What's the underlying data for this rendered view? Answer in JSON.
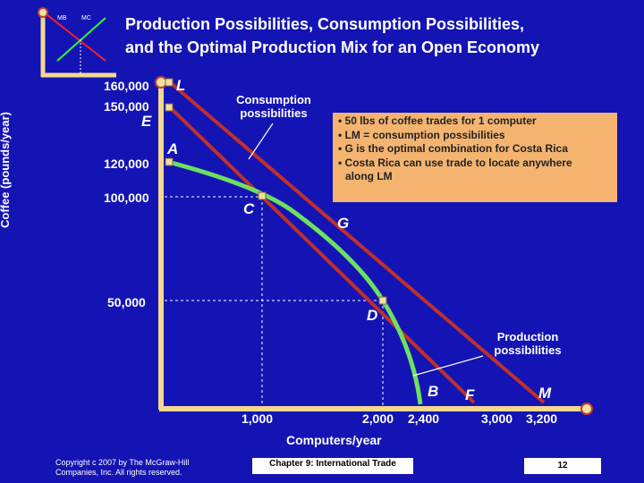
{
  "logo": {
    "mb": "MB",
    "mc": "MC"
  },
  "title": {
    "line1": "Production Possibilities, Consumption Possibilities,",
    "line2": "and the Optimal Production Mix for an Open Economy"
  },
  "axes": {
    "ylabel": "Coffee (pounds/year)",
    "xlabel": "Computers/year",
    "yticks": [
      "160,000",
      "150,000",
      "120,000",
      "100,000",
      "50,000"
    ],
    "xticks": [
      "1,000",
      "2,000",
      "2,400",
      "3,000",
      "3,200"
    ]
  },
  "points": {
    "L": "L",
    "E": "E",
    "A": "A",
    "C": "C",
    "G": "G",
    "D": "D",
    "B": "B",
    "F": "F",
    "M": "M"
  },
  "annotations": {
    "consumption": [
      "Consumption",
      "possibilities"
    ],
    "production": [
      "Production",
      "possibilities"
    ]
  },
  "infobox": {
    "items": [
      "• 50 lbs of coffee trades for 1 computer",
      "• LM = consumption possibilities",
      "• G is the optimal combination for Costa Rica",
      "• Costa Rica can use trade to locate anywhere",
      "along LM"
    ]
  },
  "footer": {
    "copyright_line1": "Copyright c 2007 by The McGraw-Hill",
    "copyright_line2": "Companies, Inc.  All rights reserved.",
    "chapter": "Chapter 9: International Trade",
    "page": "12"
  },
  "colors": {
    "background": "#1414b4",
    "axis": "#f4d890",
    "consumption_line": "#c0302a",
    "production_curve": "#6ee060",
    "marker": "#f0e0a0",
    "infobox": "#f4b470"
  }
}
